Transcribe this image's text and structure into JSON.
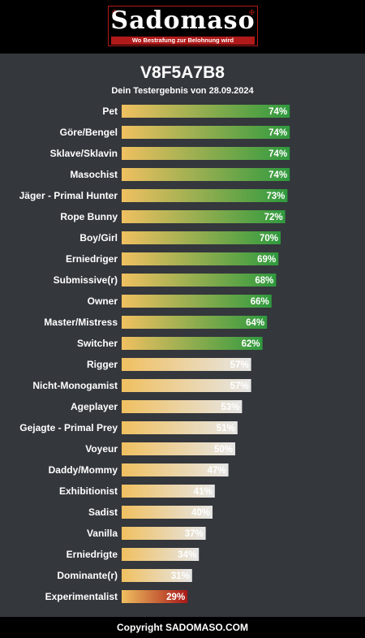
{
  "logo": {
    "wordmark": "Sadomaso",
    "tagline": "Wo Bestrafung zur Belohnung wird"
  },
  "header": {
    "title": "V8F5A7B8",
    "subtitle": "Dein Testergebnis von 28.09.2024"
  },
  "chart_data": {
    "type": "bar",
    "orientation": "horizontal",
    "categories": [
      "Pet",
      "Göre/Bengel",
      "Sklave/Sklavin",
      "Masochist",
      "Jäger - Primal Hunter",
      "Rope Bunny",
      "Boy/Girl",
      "Erniedriger",
      "Submissive(r)",
      "Owner",
      "Master/Mistress",
      "Switcher",
      "Rigger",
      "Nicht-Monogamist",
      "Ageplayer",
      "Gejagte - Primal Prey",
      "Voyeur",
      "Daddy/Mommy",
      "Exhibitionist",
      "Sadist",
      "Vanilla",
      "Erniedrigte",
      "Dominante(r)",
      "Experimentalist"
    ],
    "values": [
      74,
      74,
      74,
      74,
      73,
      72,
      70,
      69,
      68,
      66,
      64,
      62,
      57,
      57,
      53,
      51,
      50,
      47,
      41,
      40,
      37,
      34,
      31,
      29
    ],
    "value_labels": [
      "74%",
      "74%",
      "74%",
      "74%",
      "73%",
      "72%",
      "70%",
      "69%",
      "68%",
      "66%",
      "64%",
      "62%",
      "57%",
      "57%",
      "53%",
      "51%",
      "50%",
      "47%",
      "41%",
      "40%",
      "37%",
      "34%",
      "31%",
      "29%"
    ],
    "xlim": [
      0,
      100
    ],
    "colors": {
      "bar_start": "#f0c060",
      "high_end": "#2f9a3e",
      "mid_end": "#e6e6e6",
      "low_end": "#a81818",
      "label_text": "#ffffff"
    }
  },
  "footer": {
    "copyright": "Copyright SADOMASO.COM"
  }
}
